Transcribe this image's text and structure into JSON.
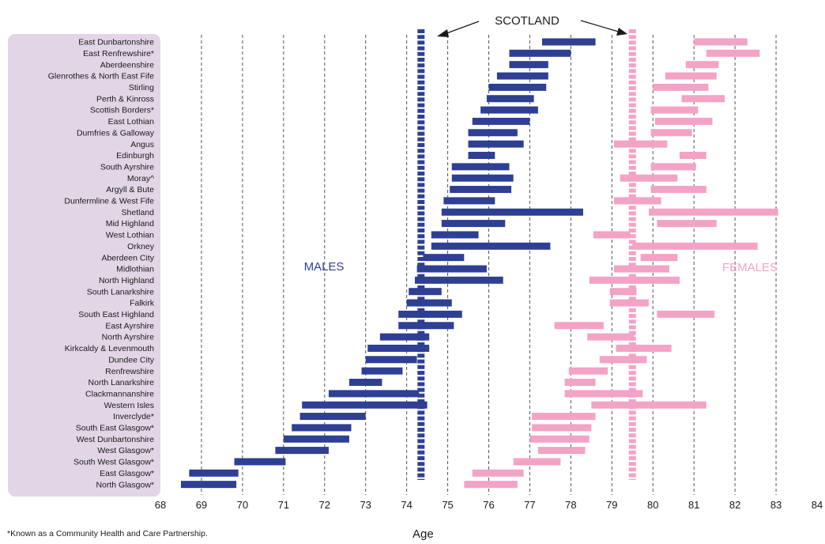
{
  "chart_data": {
    "type": "bar",
    "subtype": "range-bar",
    "xlabel": "Age",
    "xlim": [
      68,
      84
    ],
    "xticks": [
      "68",
      "69",
      "70",
      "71",
      "72",
      "73",
      "74",
      "75",
      "76",
      "77",
      "78",
      "79",
      "80",
      "81",
      "82",
      "83",
      "84"
    ],
    "grid": "vertical dashed",
    "categories": [
      "East Dunbartonshire",
      "East Renfrewshire*",
      "Aberdeenshire",
      "Glenrothes & North East Fife",
      "Stirling",
      "Perth & Kinross",
      "Scottish Borders*",
      "East Lothian",
      "Dumfries & Galloway",
      "Angus",
      "Edinburgh",
      "South Ayrshire",
      "Moray^",
      "Argyll & Bute",
      "Dunfermline & West Fife",
      "Shetland",
      "Mid Highland",
      "West Lothian",
      "Orkney",
      "Aberdeen City",
      "Midlothian",
      "North Highland",
      "South Lanarkshire",
      "Falkirk",
      "South East Highland",
      "East Ayrshire",
      "North Ayrshire",
      "Kirkcaldy & Levenmouth",
      "Dundee City",
      "Renfrewshire",
      "North Lanarkshire",
      "Clackmannanshire",
      "Western Isles",
      "Inverclyde*",
      "South East Glasgow*",
      "West Dunbartonshire",
      "West Glasgow*",
      "South West Glasgow*",
      "East Glasgow*",
      "North Glasgow*"
    ],
    "series": [
      {
        "name": "MALES",
        "color": "#2e3f94",
        "ranges": [
          [
            77.3,
            78.6
          ],
          [
            76.5,
            78.0
          ],
          [
            76.5,
            77.45
          ],
          [
            76.2,
            77.45
          ],
          [
            76.0,
            77.4
          ],
          [
            75.95,
            77.1
          ],
          [
            75.8,
            77.2
          ],
          [
            75.6,
            77.0
          ],
          [
            75.5,
            76.7
          ],
          [
            75.5,
            76.85
          ],
          [
            75.5,
            76.15
          ],
          [
            75.1,
            76.5
          ],
          [
            75.1,
            76.6
          ],
          [
            75.05,
            76.55
          ],
          [
            74.9,
            76.15
          ],
          [
            74.85,
            78.3
          ],
          [
            74.85,
            76.4
          ],
          [
            74.6,
            75.75
          ],
          [
            74.6,
            77.5
          ],
          [
            74.4,
            75.4
          ],
          [
            74.25,
            75.95
          ],
          [
            74.2,
            76.35
          ],
          [
            74.05,
            74.85
          ],
          [
            74.0,
            75.1
          ],
          [
            73.8,
            75.35
          ],
          [
            73.8,
            75.15
          ],
          [
            73.35,
            74.55
          ],
          [
            73.05,
            74.55
          ],
          [
            73.0,
            74.25
          ],
          [
            72.9,
            73.9
          ],
          [
            72.6,
            73.4
          ],
          [
            72.1,
            74.3
          ],
          [
            71.45,
            74.5
          ],
          [
            71.4,
            73.0
          ],
          [
            71.2,
            72.65
          ],
          [
            71.0,
            72.6
          ],
          [
            70.8,
            72.1
          ],
          [
            69.8,
            71.05
          ],
          [
            68.7,
            69.9
          ],
          [
            68.5,
            69.85
          ]
        ]
      },
      {
        "name": "FEMALES",
        "color": "#f3a3c6",
        "ranges": [
          [
            81.0,
            82.3
          ],
          [
            81.3,
            82.6
          ],
          [
            80.8,
            81.6
          ],
          [
            80.3,
            81.55
          ],
          [
            80.0,
            81.35
          ],
          [
            80.7,
            81.75
          ],
          [
            79.95,
            81.1
          ],
          [
            80.05,
            81.45
          ],
          [
            79.95,
            80.95
          ],
          [
            79.05,
            80.35
          ],
          [
            80.65,
            81.3
          ],
          [
            79.95,
            81.05
          ],
          [
            79.2,
            80.6
          ],
          [
            79.95,
            81.3
          ],
          [
            79.05,
            80.2
          ],
          [
            79.9,
            83.05
          ],
          [
            80.1,
            81.55
          ],
          [
            78.55,
            79.45
          ],
          [
            79.5,
            82.55
          ],
          [
            79.7,
            80.6
          ],
          [
            79.05,
            80.4
          ],
          [
            78.45,
            80.65
          ],
          [
            78.95,
            79.6
          ],
          [
            78.95,
            79.9
          ],
          [
            80.1,
            81.5
          ],
          [
            77.6,
            78.8
          ],
          [
            78.4,
            79.55
          ],
          [
            79.1,
            80.45
          ],
          [
            78.7,
            79.85
          ],
          [
            77.95,
            78.9
          ],
          [
            77.85,
            78.6
          ],
          [
            77.85,
            79.75
          ],
          [
            78.5,
            81.3
          ],
          [
            77.05,
            78.6
          ],
          [
            77.05,
            78.5
          ],
          [
            77.0,
            78.45
          ],
          [
            77.2,
            78.35
          ],
          [
            76.6,
            77.75
          ],
          [
            75.6,
            76.85
          ],
          [
            75.4,
            76.7
          ]
        ]
      }
    ],
    "reference_lines": [
      {
        "label": "SCOTLAND",
        "series": "MALES",
        "value": 74.35
      },
      {
        "label": "SCOTLAND",
        "series": "FEMALES",
        "value": 79.5
      }
    ],
    "annotations": {
      "scotland": "SCOTLAND",
      "males": "MALES",
      "females": "FEMALES"
    },
    "footnote": "*Known as a Community Health and Care Partnership."
  }
}
